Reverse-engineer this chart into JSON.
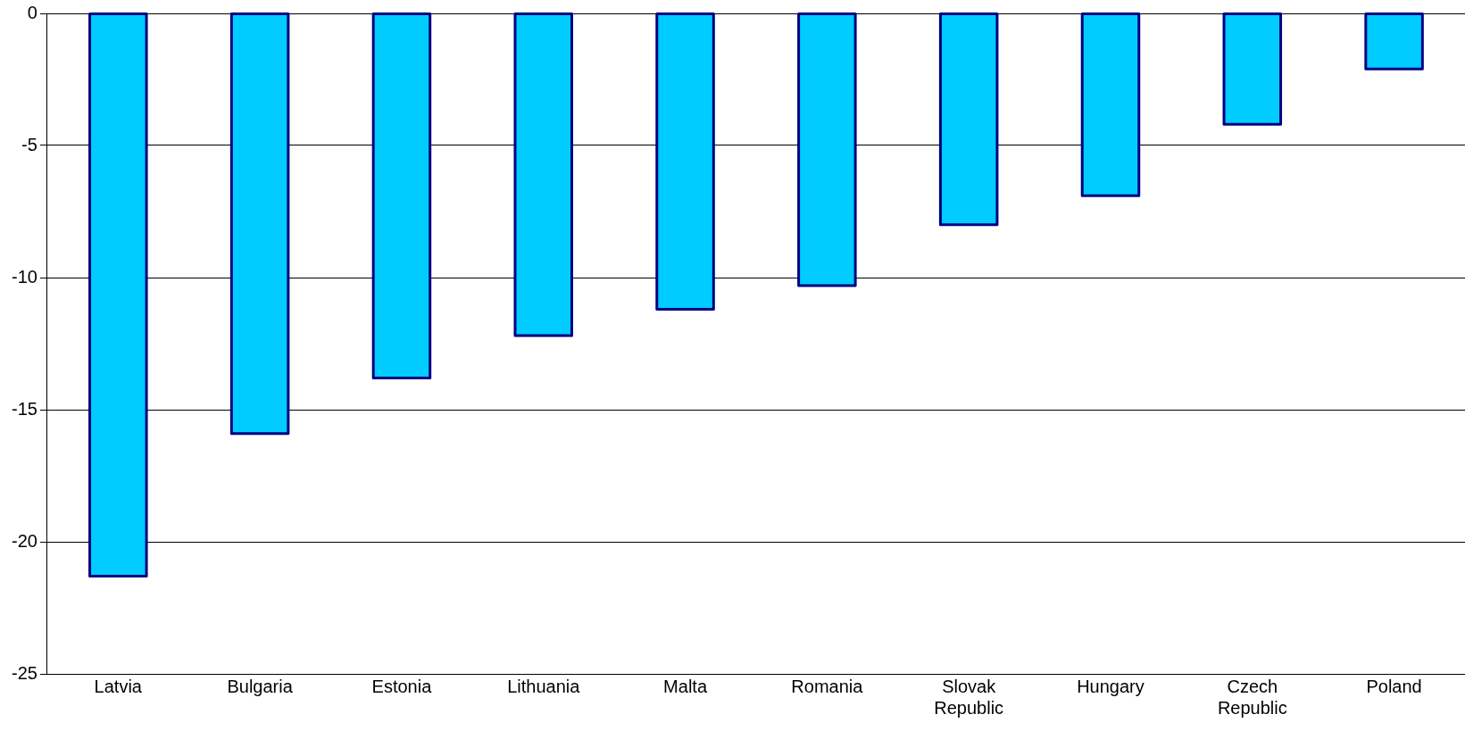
{
  "chart_data": {
    "type": "bar",
    "categories": [
      "Latvia",
      "Bulgaria",
      "Estonia",
      "Lithuania",
      "Malta",
      "Romania",
      "Slovak Republic",
      "Hungary",
      "Czech Republic",
      "Poland"
    ],
    "values": [
      -21.3,
      -15.9,
      -13.8,
      -12.2,
      -11.2,
      -10.3,
      -8.0,
      -6.9,
      -4.2,
      -2.1
    ],
    "color": "#00ccff",
    "ylim": [
      -25,
      0
    ],
    "yticks": [
      -25,
      -20,
      -15,
      -10,
      -5,
      0
    ],
    "grid": "y"
  }
}
